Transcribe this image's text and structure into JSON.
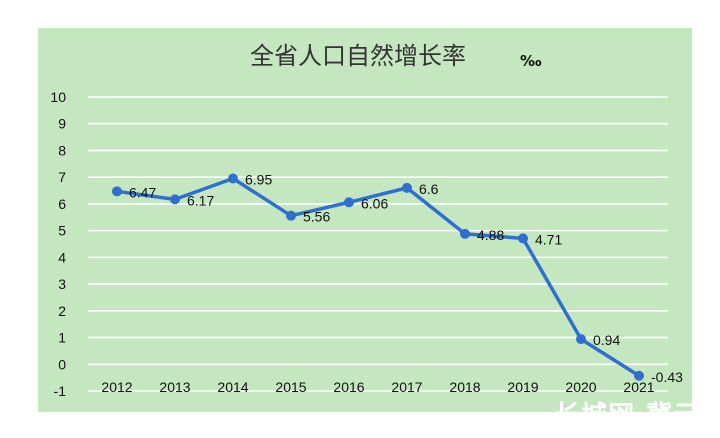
{
  "chart_data": {
    "type": "line",
    "title": "全省人口自然增长率",
    "unit": "‰",
    "xlabel": "",
    "ylabel": "",
    "categories": [
      "2012",
      "2013",
      "2014",
      "2015",
      "2016",
      "2017",
      "2018",
      "2019",
      "2020",
      "2021"
    ],
    "series": [
      {
        "values": [
          6.47,
          6.17,
          6.95,
          5.56,
          6.06,
          6.6,
          4.88,
          4.71,
          0.94,
          -0.43
        ]
      }
    ],
    "data_labels": [
      "6.47",
      "6.17",
      "6.95",
      "5.56",
      "6.06",
      "6.6",
      "4.88",
      "4.71",
      "0.94",
      "-0.43"
    ],
    "ylim": [
      -1,
      10
    ],
    "yticks": [
      "-1",
      "0",
      "1",
      "2",
      "3",
      "4",
      "5",
      "6",
      "7",
      "8",
      "9",
      "10"
    ],
    "grid": true,
    "legend": "none",
    "colors": {
      "background": "#c5e7bf",
      "line": "#2f6fd0",
      "grid": "#ffffff"
    }
  },
  "watermark": "长城网·冀云"
}
